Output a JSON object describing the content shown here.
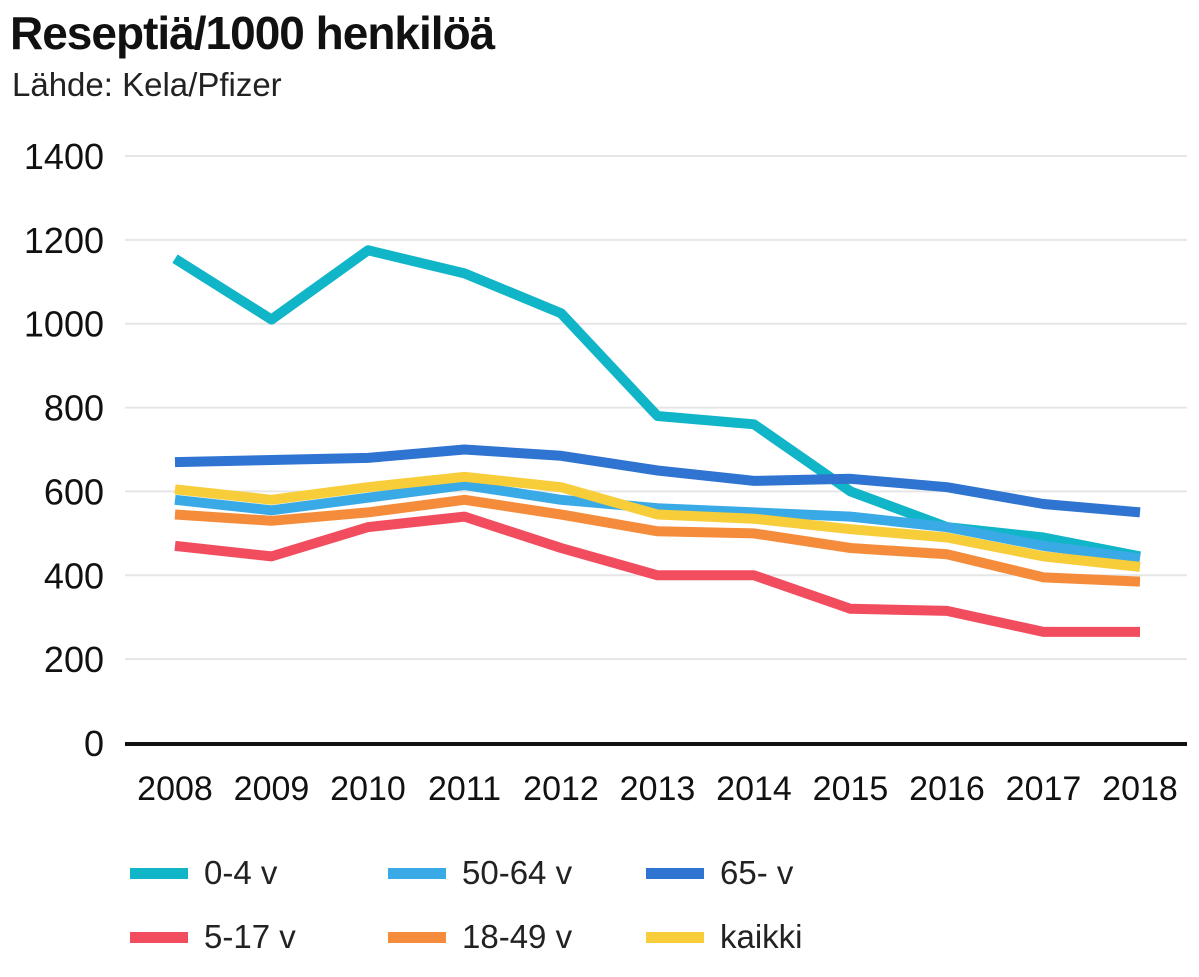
{
  "header": {
    "title": "Reseptiä/1000 henkilöä",
    "subtitle": "Lähde: Kela/Pfizer"
  },
  "chart_data": {
    "type": "line",
    "title": "Reseptiä/1000 henkilöä",
    "subtitle": "Lähde: Kela/Pfizer",
    "xlabel": "",
    "ylabel": "",
    "ylim": [
      0,
      1400
    ],
    "yticks": [
      0,
      200,
      400,
      600,
      800,
      1000,
      1200,
      1400
    ],
    "grid": true,
    "legend_position": "bottom",
    "categories": [
      "2008",
      "2009",
      "2010",
      "2011",
      "2012",
      "2013",
      "2014",
      "2015",
      "2016",
      "2017",
      "2018"
    ],
    "series": [
      {
        "name": "0-4 v",
        "color": "#10b5c8",
        "values": [
          1155,
          1010,
          1175,
          1120,
          1025,
          780,
          760,
          600,
          515,
          490,
          445
        ]
      },
      {
        "name": "50-64 v",
        "color": "#3aaae6",
        "values": [
          580,
          555,
          585,
          615,
          580,
          560,
          550,
          540,
          515,
          470,
          440
        ]
      },
      {
        "name": "65- v",
        "color": "#2f74d0",
        "values": [
          670,
          675,
          680,
          700,
          685,
          650,
          625,
          630,
          610,
          570,
          550
        ]
      },
      {
        "name": "5-17 v",
        "color": "#f24d5e",
        "values": [
          470,
          445,
          515,
          540,
          465,
          400,
          400,
          320,
          315,
          265,
          265
        ]
      },
      {
        "name": "18-49 v",
        "color": "#f48c3b",
        "values": [
          545,
          530,
          550,
          580,
          545,
          505,
          500,
          465,
          450,
          395,
          385
        ]
      },
      {
        "name": "kaikki",
        "color": "#f8cd3a",
        "values": [
          605,
          580,
          610,
          635,
          610,
          545,
          535,
          510,
          490,
          445,
          420
        ]
      }
    ]
  }
}
